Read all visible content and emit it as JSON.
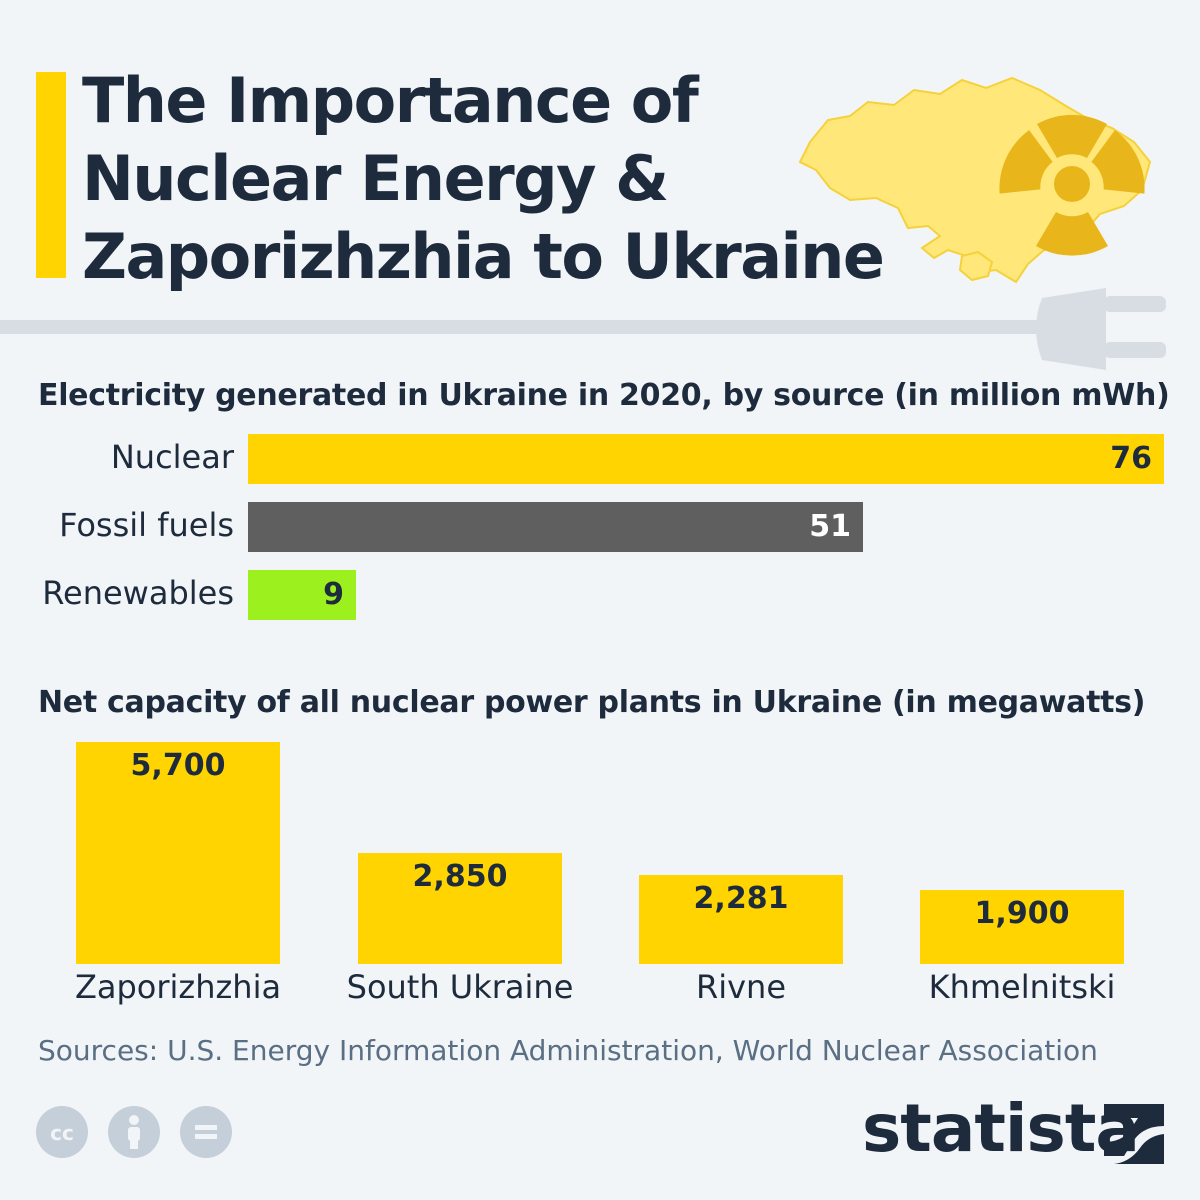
{
  "title": {
    "line1": "The Importance of",
    "line2": "Nuclear Energy &",
    "line3": "Zaporizhzhia to Ukraine"
  },
  "colors": {
    "accent": "#ffd400",
    "dark": "#1d2b3d",
    "fossil": "#5f5f5f",
    "renewable": "#9cf01e"
  },
  "chart_data": [
    {
      "type": "bar",
      "orientation": "horizontal",
      "title": "Electricity generated in Ukraine in 2020, by source (in million mWh)",
      "categories": [
        "Nuclear",
        "Fossil fuels",
        "Renewables"
      ],
      "values": [
        76,
        51,
        9
      ],
      "value_labels": [
        "76",
        "51",
        "9"
      ],
      "bar_colors": [
        "#ffd400",
        "#5f5f5f",
        "#9cf01e"
      ],
      "xlim": [
        0,
        76
      ]
    },
    {
      "type": "bar",
      "orientation": "vertical",
      "title": "Net capacity of all nuclear power plants in Ukraine (in megawatts)",
      "categories": [
        "Zaporizhzhia",
        "South Ukraine",
        "Rivne",
        "Khmelnitski"
      ],
      "values": [
        5700,
        2850,
        2281,
        1900
      ],
      "value_labels": [
        "5,700",
        "2,850",
        "2,281",
        "1,900"
      ],
      "ylim": [
        0,
        5700
      ]
    }
  ],
  "source": "Sources: U.S. Energy Information Administration, World Nuclear Association",
  "footer": {
    "license_icons": [
      "cc-icon",
      "attribution-icon",
      "no-derivatives-icon"
    ],
    "brand": "statista"
  }
}
